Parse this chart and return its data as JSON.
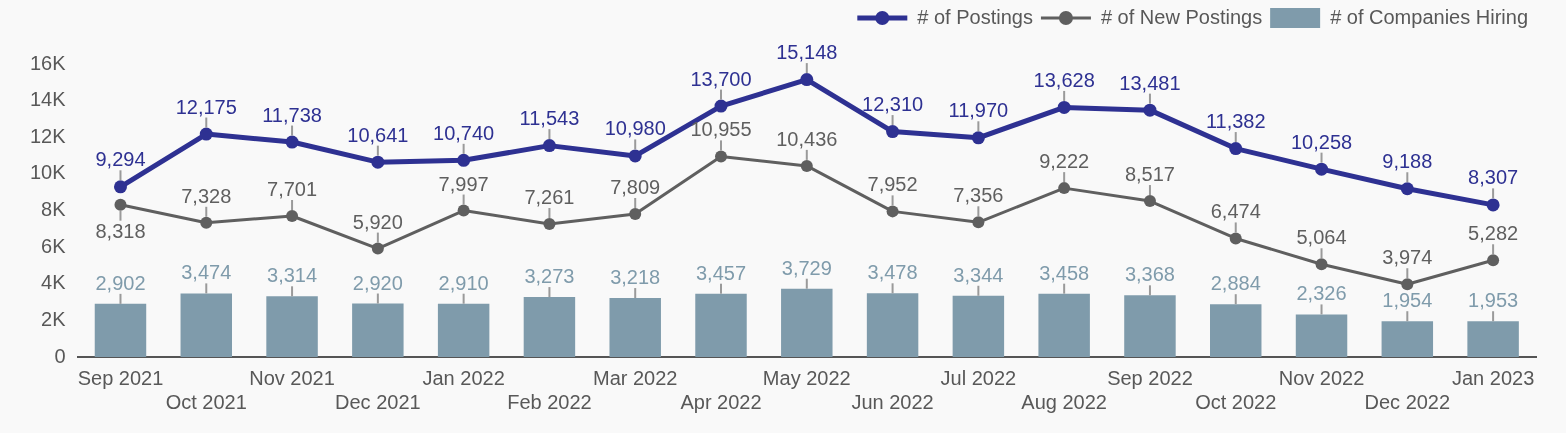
{
  "chart_data": {
    "type": "bar",
    "categories": [
      "Sep 2021",
      "Oct 2021",
      "Nov 2021",
      "Dec 2021",
      "Jan 2022",
      "Feb 2022",
      "Mar 2022",
      "Apr 2022",
      "May 2022",
      "Jun 2022",
      "Jul 2022",
      "Aug 2022",
      "Sep 2022",
      "Oct 2022",
      "Nov 2022",
      "Dec 2022",
      "Jan 2023"
    ],
    "series": [
      {
        "name": "# of Postings",
        "type": "line",
        "color": "#2e3192",
        "values": [
          9294,
          12175,
          11738,
          10641,
          10740,
          11543,
          10980,
          13700,
          15148,
          12310,
          11970,
          13628,
          13481,
          11382,
          10258,
          9188,
          8307
        ],
        "value_labels": [
          "9,294",
          "12,175",
          "11,738",
          "10,641",
          "10,740",
          "11,543",
          "10,980",
          "13,700",
          "15,148",
          "12,310",
          "11,970",
          "13,628",
          "13,481",
          "11,382",
          "10,258",
          "9,188",
          "8,307"
        ]
      },
      {
        "name": "# of New Postings",
        "type": "line",
        "color": "#5f5f5f",
        "values": [
          8318,
          7328,
          7701,
          5920,
          7997,
          7261,
          7809,
          10955,
          10436,
          7952,
          7356,
          9222,
          8517,
          6474,
          5064,
          3974,
          5282
        ],
        "value_labels": [
          "8,318",
          "7,328",
          "7,701",
          "5,920",
          "7,997",
          "7,261",
          "7,809",
          "10,955",
          "10,436",
          "7,952",
          "7,356",
          "9,222",
          "8,517",
          "6,474",
          "5,064",
          "3,974",
          "5,282"
        ]
      },
      {
        "name": "# of Companies Hiring",
        "color": "#7f9bab",
        "values": [
          2902,
          3474,
          3314,
          2920,
          2910,
          3273,
          3218,
          3457,
          3729,
          3478,
          3344,
          3458,
          3368,
          2884,
          2326,
          1954,
          1953
        ],
        "value_labels": [
          "2,902",
          "3,474",
          "3,314",
          "2,920",
          "2,910",
          "3,273",
          "3,218",
          "3,457",
          "3,729",
          "3,478",
          "3,344",
          "3,458",
          "3,368",
          "2,884",
          "2,326",
          "1,954",
          "1,953"
        ]
      }
    ],
    "ylim": [
      0,
      16000
    ],
    "yticks": [
      0,
      {
        "value": 2000,
        "label": "2K"
      },
      {
        "value": 4000,
        "label": "4K"
      },
      {
        "value": 6000,
        "label": "6K"
      },
      {
        "value": 8000,
        "label": "8K"
      },
      {
        "value": 10000,
        "label": "10K"
      },
      {
        "value": 12000,
        "label": "12K"
      },
      {
        "value": 14000,
        "label": "14K"
      },
      {
        "value": 16000,
        "label": "16K"
      }
    ],
    "legend": "top right",
    "marker": "circle",
    "line_style": "solid"
  }
}
